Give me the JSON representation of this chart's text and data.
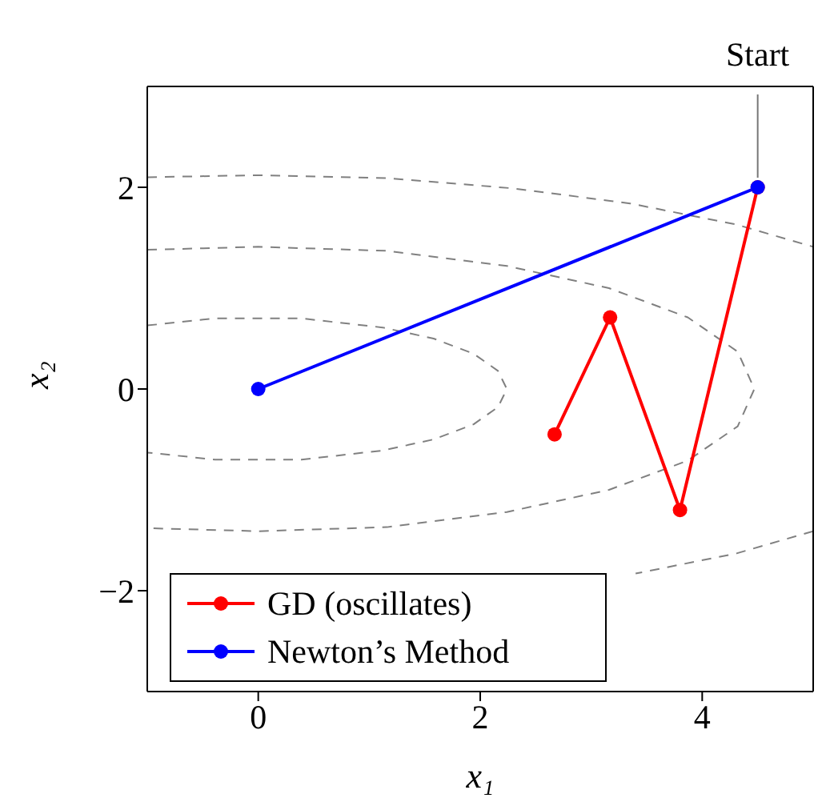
{
  "chart_data": {
    "type": "line",
    "xlabel": "x₁",
    "ylabel": "x₂",
    "xlim": [
      -1,
      5
    ],
    "xticks": [
      0,
      2,
      4
    ],
    "ylim": [
      -3,
      3
    ],
    "yticks": [
      {
        "value": -2,
        "label": "−2"
      },
      0,
      2
    ],
    "grid": false,
    "legend": "bottom left",
    "marker": "circle",
    "line_style": "solid",
    "annotations": [
      {
        "text": "Start",
        "x": 4.5,
        "y": 2
      }
    ],
    "series": [
      {
        "color": "#808080",
        "marker": "none",
        "line_style": "dashed",
        "x": [
          -1,
          -0.39,
          0.39,
          1.12,
          1.58,
          1.94,
          2.16,
          2.24,
          2.16,
          1.94,
          1.58,
          1.12,
          0.39,
          -0.39,
          -1
        ],
        "values": [
          0.63,
          0.7,
          0.7,
          0.61,
          0.5,
          0.35,
          0.18,
          0,
          -0.18,
          -0.35,
          -0.5,
          -0.61,
          -0.7,
          -0.7,
          -0.63
        ]
      },
      {
        "color": "#808080",
        "marker": "none",
        "line_style": "dashed",
        "x": [
          -1,
          0,
          1.16,
          2.24,
          3.16,
          3.87,
          4.32,
          4.47,
          4.32,
          3.87,
          3.16,
          2.24,
          1.16,
          0,
          -1
        ],
        "values": [
          1.38,
          1.41,
          1.37,
          1.22,
          1.0,
          0.71,
          0.37,
          0,
          -0.37,
          -0.71,
          -1.0,
          -1.22,
          -1.37,
          -1.41,
          -1.38
        ]
      },
      {
        "color": "#808080",
        "marker": "none",
        "line_style": "dashed",
        "x": [
          -1,
          0,
          1.17,
          2.29,
          3.35,
          4.31,
          5
        ],
        "values": [
          2.1,
          2.12,
          2.09,
          1.99,
          1.84,
          1.63,
          1.41
        ]
      },
      {
        "color": "#808080",
        "marker": "none",
        "line_style": "dashed",
        "x": [
          5,
          4.31,
          3.4
        ],
        "values": [
          -1.41,
          -1.63,
          -1.83
        ]
      },
      {
        "name": "GD (oscillates)",
        "color": "#ff0000",
        "x": [
          4.5,
          3.8,
          3.17,
          2.67
        ],
        "values": [
          2,
          -1.2,
          0.71,
          -0.45
        ]
      },
      {
        "name": "Newton’s Method",
        "color": "#0000ff",
        "x": [
          4.5,
          0
        ],
        "values": [
          2,
          0
        ]
      }
    ]
  }
}
